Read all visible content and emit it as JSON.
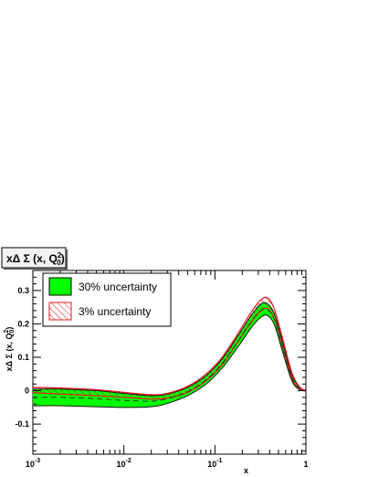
{
  "chart_data": {
    "type": "area",
    "title": "xΔ Σ (x, Q",
    "title_sup": "2",
    "title_sub": "0",
    "title_end": ")",
    "xlabel": "x",
    "ylabel": "xΔ Σ (x, Q",
    "ylabel_sup": "2",
    "ylabel_sub": "0",
    "ylabel_end": ")",
    "xscale": "log",
    "xlim": [
      0.001,
      1
    ],
    "ylim": [
      -0.19,
      0.36
    ],
    "x_ticks": [
      {
        "base": "10",
        "exp": "-3",
        "value": 0.001
      },
      {
        "base": "10",
        "exp": "-2",
        "value": 0.01
      },
      {
        "base": "10",
        "exp": "-1",
        "value": 0.1
      },
      {
        "base": "1",
        "exp": "",
        "value": 1
      }
    ],
    "y_ticks": [
      {
        "label": "-0.1",
        "value": -0.1
      },
      {
        "label": "0",
        "value": 0
      },
      {
        "label": "0.1",
        "value": 0.1
      },
      {
        "label": "0.2",
        "value": 0.2
      },
      {
        "label": "0.3",
        "value": 0.3
      }
    ],
    "legend": [
      {
        "label": "30% uncertainty",
        "style": "solid-green",
        "color": "#00ff00"
      },
      {
        "label": "3% uncertainty",
        "style": "hatched-red",
        "color": "#e8141c"
      }
    ],
    "legend_position": "top-left",
    "x": [
      0.001,
      0.002,
      0.005,
      0.01,
      0.02,
      0.03,
      0.05,
      0.08,
      0.12,
      0.18,
      0.25,
      0.32,
      0.38,
      0.45,
      0.55,
      0.7,
      0.85,
      1.0
    ],
    "series": [
      {
        "role": "green-upper",
        "values": [
          0.005,
          0.005,
          0.0,
          -0.008,
          -0.015,
          -0.01,
          0.01,
          0.045,
          0.095,
          0.165,
          0.225,
          0.26,
          0.26,
          0.23,
          0.15,
          0.05,
          0.01,
          0.0
        ]
      },
      {
        "role": "green-lower",
        "values": [
          -0.045,
          -0.045,
          -0.048,
          -0.05,
          -0.048,
          -0.038,
          -0.015,
          0.02,
          0.068,
          0.132,
          0.188,
          0.22,
          0.225,
          0.198,
          0.12,
          0.03,
          0.003,
          0.0
        ]
      },
      {
        "role": "red-upper",
        "values": [
          0.01,
          0.008,
          0.003,
          -0.005,
          -0.012,
          -0.008,
          0.013,
          0.05,
          0.1,
          0.172,
          0.235,
          0.272,
          0.278,
          0.245,
          0.16,
          0.055,
          0.012,
          0.0
        ]
      },
      {
        "role": "red-lower",
        "values": [
          -0.006,
          -0.01,
          -0.015,
          -0.02,
          -0.025,
          -0.022,
          -0.005,
          0.03,
          0.078,
          0.148,
          0.205,
          0.24,
          0.245,
          0.215,
          0.135,
          0.038,
          0.005,
          0.0
        ]
      }
    ]
  }
}
